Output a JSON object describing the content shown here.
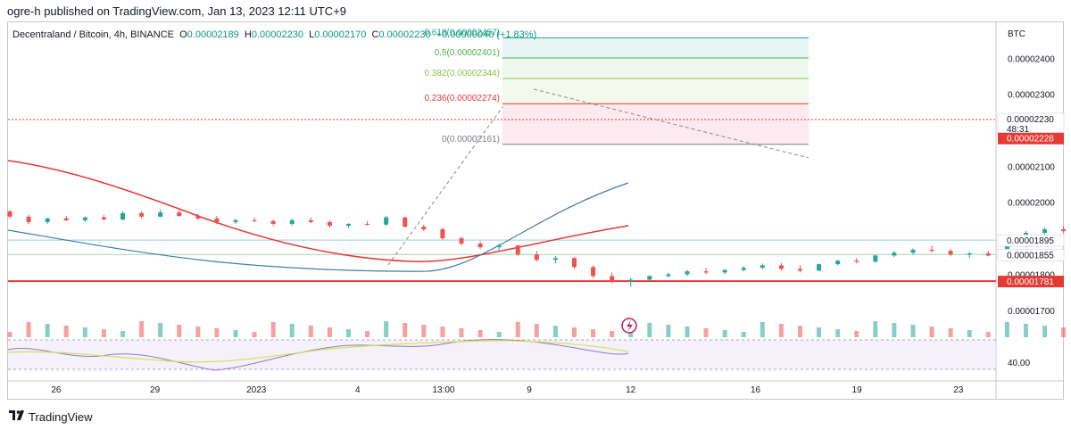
{
  "header": {
    "published": "ogre-h published on TradingView.com, Jan 13, 2023 12:11 UTC+9"
  },
  "legend": {
    "symbol": "Decentraland / Bitcoin, 4h, BINANCE",
    "o_key": "O",
    "o_val": "0.00002189",
    "h_key": "H",
    "h_val": "0.00002230",
    "l_key": "L",
    "l_val": "0.00002170",
    "c_key": "C",
    "c_val": "0.00002230",
    "change": "+0.00000040 (+1.83%)"
  },
  "footer": {
    "brand": "TradingView"
  },
  "colors": {
    "up": "#26a69a",
    "down": "#ef5350",
    "ma_long": "#e53935",
    "ma_short": "#3f7fa8",
    "rsi": "#9575cd",
    "rsi_ma": "#d4e157",
    "hline_red": "#e53935",
    "hline_cyan": "#9ad2de"
  },
  "chart_data": {
    "type": "candlestick",
    "currency_label": "BTC",
    "y_ticks": [
      "0.00002400",
      "0.00002300",
      "0.00002200",
      "0.00002100",
      "0.00002000",
      "0.00001900",
      "0.00001800",
      "0.00001700"
    ],
    "ylim": [
      1.64e-05,
      2.5e-05
    ],
    "x_ticks": [
      "26",
      "29",
      "2023",
      "4",
      "13:00",
      "9",
      "12",
      "16",
      "19",
      "23"
    ],
    "x_tick_idx": [
      18,
      56,
      95,
      134,
      167,
      200,
      239,
      287,
      326,
      365
    ],
    "n_bars": 380,
    "candles_ohlc": [
      [
        1.975e-05,
        1.978e-05,
        1.955e-05,
        1.96e-05
      ],
      [
        1.96e-05,
        1.965e-05,
        1.94e-05,
        1.945e-05
      ],
      [
        1.945e-05,
        1.958e-05,
        1.94e-05,
        1.955e-05
      ],
      [
        1.955e-05,
        1.962e-05,
        1.948e-05,
        1.95e-05
      ],
      [
        1.95e-05,
        1.96e-05,
        1.945e-05,
        1.958e-05
      ],
      [
        1.958e-05,
        1.965e-05,
        1.95e-05,
        1.952e-05
      ],
      [
        1.952e-05,
        1.975e-05,
        1.95e-05,
        1.97e-05
      ],
      [
        1.97e-05,
        1.975e-05,
        1.955e-05,
        1.96e-05
      ],
      [
        1.96e-05,
        1.98e-05,
        1.958e-05,
        1.972e-05
      ],
      [
        1.972e-05,
        1.978e-05,
        1.96e-05,
        1.962e-05
      ],
      [
        1.962e-05,
        1.968e-05,
        1.95e-05,
        1.955e-05
      ],
      [
        1.955e-05,
        1.962e-05,
        1.94e-05,
        1.945e-05
      ],
      [
        1.945e-05,
        1.955e-05,
        1.94e-05,
        1.95e-05
      ],
      [
        1.95e-05,
        1.958e-05,
        1.945e-05,
        1.948e-05
      ],
      [
        1.948e-05,
        1.952e-05,
        1.935e-05,
        1.94e-05
      ],
      [
        1.94e-05,
        1.955e-05,
        1.935e-05,
        1.95e-05
      ],
      [
        1.95e-05,
        1.958e-05,
        1.942e-05,
        1.945e-05
      ],
      [
        1.945e-05,
        1.95e-05,
        1.93e-05,
        1.935e-05
      ],
      [
        1.935e-05,
        1.942e-05,
        1.928e-05,
        1.94e-05
      ],
      [
        1.94e-05,
        1.948e-05,
        1.935e-05,
        1.938e-05
      ],
      [
        1.938e-05,
        1.962e-05,
        1.935e-05,
        1.958e-05
      ],
      [
        1.958e-05,
        1.96e-05,
        1.93e-05,
        1.932e-05
      ],
      [
        1.932e-05,
        1.938e-05,
        1.92e-05,
        1.925e-05
      ],
      [
        1.925e-05,
        1.93e-05,
        1.895e-05,
        1.9e-05
      ],
      [
        1.9e-05,
        1.905e-05,
        1.88e-05,
        1.885e-05
      ],
      [
        1.885e-05,
        1.892e-05,
        1.87e-05,
        1.875e-05
      ],
      [
        1.875e-05,
        1.885e-05,
        1.865e-05,
        1.88e-05
      ],
      [
        1.88e-05,
        1.882e-05,
        1.85e-05,
        1.855e-05
      ],
      [
        1.855e-05,
        1.865e-05,
        1.835e-05,
        1.84e-05
      ],
      [
        1.84e-05,
        1.85e-05,
        1.83e-05,
        1.845e-05
      ],
      [
        1.845e-05,
        1.848e-05,
        1.815e-05,
        1.82e-05
      ],
      [
        1.82e-05,
        1.825e-05,
        1.79e-05,
        1.795e-05
      ],
      [
        1.795e-05,
        1.805e-05,
        1.775e-05,
        1.78e-05
      ],
      [
        1.78e-05,
        1.79e-05,
        1.765e-05,
        1.785e-05
      ],
      [
        1.785e-05,
        1.798e-05,
        1.78e-05,
        1.795e-05
      ],
      [
        1.795e-05,
        1.805e-05,
        1.79e-05,
        1.8e-05
      ],
      [
        1.8e-05,
        1.812e-05,
        1.795e-05,
        1.808e-05
      ],
      [
        1.808e-05,
        1.818e-05,
        1.8e-05,
        1.805e-05
      ],
      [
        1.805e-05,
        1.815e-05,
        1.8e-05,
        1.812e-05
      ],
      [
        1.812e-05,
        1.822e-05,
        1.808e-05,
        1.818e-05
      ],
      [
        1.818e-05,
        1.83e-05,
        1.815e-05,
        1.825e-05
      ],
      [
        1.825e-05,
        1.832e-05,
        1.81e-05,
        1.815e-05
      ],
      [
        1.815e-05,
        1.825e-05,
        1.805e-05,
        1.81e-05
      ],
      [
        1.81e-05,
        1.83e-05,
        1.808e-05,
        1.828e-05
      ],
      [
        1.828e-05,
        1.84e-05,
        1.825e-05,
        1.838e-05
      ],
      [
        1.838e-05,
        1.845e-05,
        1.83e-05,
        1.835e-05
      ],
      [
        1.835e-05,
        1.855e-05,
        1.832e-05,
        1.852e-05
      ],
      [
        1.852e-05,
        1.865e-05,
        1.848e-05,
        1.86e-05
      ],
      [
        1.86e-05,
        1.872e-05,
        1.855e-05,
        1.868e-05
      ],
      [
        1.868e-05,
        1.88e-05,
        1.86e-05,
        1.865e-05
      ],
      [
        1.865e-05,
        1.87e-05,
        1.85e-05,
        1.855e-05
      ],
      [
        1.855e-05,
        1.862e-05,
        1.845e-05,
        1.858e-05
      ],
      [
        1.858e-05,
        1.865e-05,
        1.85e-05,
        1.852e-05
      ],
      [
        1.852e-05,
        1.88e-05,
        1.85e-05,
        1.878e-05
      ],
      [
        1.878e-05,
        1.92e-05,
        1.875e-05,
        1.915e-05
      ],
      [
        1.915e-05,
        1.93e-05,
        1.905e-05,
        1.925e-05
      ],
      [
        1.925e-05,
        1.935e-05,
        1.915e-05,
        1.92e-05
      ],
      [
        1.92e-05,
        1.94e-05,
        1.918e-05,
        1.935e-05
      ],
      [
        1.935e-05,
        1.95e-05,
        1.93e-05,
        1.945e-05
      ],
      [
        1.945e-05,
        1.965e-05,
        1.94e-05,
        1.96e-05
      ],
      [
        1.96e-05,
        1.975e-05,
        1.955e-05,
        1.965e-05
      ],
      [
        1.965e-05,
        1.98e-05,
        1.945e-05,
        1.95e-05
      ],
      [
        1.95e-05,
        1.955e-05,
        1.925e-05,
        1.93e-05
      ],
      [
        1.93e-05,
        1.94e-05,
        1.91e-05,
        1.915e-05
      ],
      [
        1.915e-05,
        1.93e-05,
        1.905e-05,
        1.91e-05
      ],
      [
        1.91e-05,
        1.925e-05,
        1.9e-05,
        1.908e-05
      ],
      [
        1.908e-05,
        1.93e-05,
        1.905e-05,
        1.928e-05
      ],
      [
        1.928e-05,
        1.975e-05,
        1.925e-05,
        1.97e-05
      ],
      [
        1.97e-05,
        2e-05,
        1.965e-05,
        1.995e-05
      ],
      [
        1.995e-05,
        2.08e-05,
        1.99e-05,
        2.075e-05
      ],
      [
        2.075e-05,
        2.1e-05,
        2.06e-05,
        2.09e-05
      ],
      [
        2.09e-05,
        2.1e-05,
        2.07e-05,
        2.075e-05
      ],
      [
        2.075e-05,
        2.085e-05,
        2.05e-05,
        2.06e-05
      ],
      [
        2.06e-05,
        2.075e-05,
        2.04e-05,
        2.07e-05
      ],
      [
        2.07e-05,
        2.08e-05,
        2.02e-05,
        2.03e-05
      ],
      [
        2.03e-05,
        2.07e-05,
        2.025e-05,
        2.065e-05
      ],
      [
        2.065e-05,
        2.09e-05,
        2.06e-05,
        2.085e-05
      ],
      [
        2.085e-05,
        2.2e-05,
        2.08e-05,
        2.195e-05
      ],
      [
        2.195e-05,
        2.32e-05,
        2.19e-05,
        2.31e-05
      ],
      [
        2.31e-05,
        2.38e-05,
        2.29e-05,
        2.33e-05
      ],
      [
        2.33e-05,
        2.36e-05,
        2.3e-05,
        2.35e-05
      ],
      [
        2.35e-05,
        2.36e-05,
        2.31e-05,
        2.32e-05
      ],
      [
        2.32e-05,
        2.41e-05,
        2.3e-05,
        2.34e-05
      ],
      [
        2.34e-05,
        2.35e-05,
        2.29e-05,
        2.3e-05
      ],
      [
        2.3e-05,
        2.33e-05,
        2.29e-05,
        2.325e-05
      ],
      [
        2.325e-05,
        2.335e-05,
        2.28e-05,
        2.29e-05
      ],
      [
        2.29e-05,
        2.3e-05,
        2.26e-05,
        2.27e-05
      ],
      [
        2.27e-05,
        2.295e-05,
        2.25e-05,
        2.28e-05
      ],
      [
        2.28e-05,
        2.33e-05,
        2.27e-05,
        2.26e-05
      ],
      [
        2.26e-05,
        2.28e-05,
        2.24e-05,
        2.25e-05
      ],
      [
        2.25e-05,
        2.26e-05,
        2.2e-05,
        2.21e-05
      ],
      [
        2.21e-05,
        2.23e-05,
        2.18e-05,
        2.225e-05
      ],
      [
        2.225e-05,
        2.24e-05,
        2.2e-05,
        2.205e-05
      ],
      [
        2.205e-05,
        2.215e-05,
        2.16e-05,
        2.17e-05
      ],
      [
        2.17e-05,
        2.19e-05,
        2.14e-05,
        2.185e-05
      ],
      [
        2.185e-05,
        2.2e-05,
        2.165e-05,
        2.189e-05
      ],
      [
        2.189e-05,
        2.23e-05,
        2.17e-05,
        2.23e-05
      ]
    ],
    "fib": [
      {
        "label": "0.618(0.00002457)",
        "value": 2.457e-05,
        "color": "#26a69a"
      },
      {
        "label": "0.5(0.00002401)",
        "value": 2.401e-05,
        "color": "#4caf50"
      },
      {
        "label": "0.382(0.00002344)",
        "value": 2.344e-05,
        "color": "#8bc34a"
      },
      {
        "label": "0.236(0.00002274)",
        "value": 2.274e-05,
        "color": "#e53935"
      },
      {
        "label": "0(0.00002161)",
        "value": 2.161e-05,
        "color": "#787b86"
      }
    ],
    "price_labels": [
      {
        "label": "0.00002230",
        "sub": "48:31",
        "value": 2.23e-05,
        "bg": "#ffffff",
        "fg": "#131722"
      },
      {
        "label": "0.00002228",
        "value": 2.228e-05,
        "bg": "#e53935",
        "fg": "#ffffff"
      },
      {
        "label": "0.00001895",
        "value": 1.895e-05,
        "bg": "#ffffff",
        "fg": "#131722"
      },
      {
        "label": "0.00001855",
        "value": 1.855e-05,
        "bg": "#ffffff",
        "fg": "#131722"
      },
      {
        "label": "0.00001781",
        "value": 1.781e-05,
        "bg": "#e53935",
        "fg": "#ffffff"
      }
    ],
    "hlines": [
      {
        "value": 2.23e-05,
        "color": "#e53935",
        "dash": true
      },
      {
        "value": 1.895e-05,
        "color": "#9ad2de",
        "dash": false
      },
      {
        "value": 1.855e-05,
        "color": "#a5d6a7",
        "dash": false
      },
      {
        "value": 1.781e-05,
        "color": "#e53935",
        "dash": false
      }
    ],
    "rsi": {
      "tick": "40.00"
    }
  }
}
